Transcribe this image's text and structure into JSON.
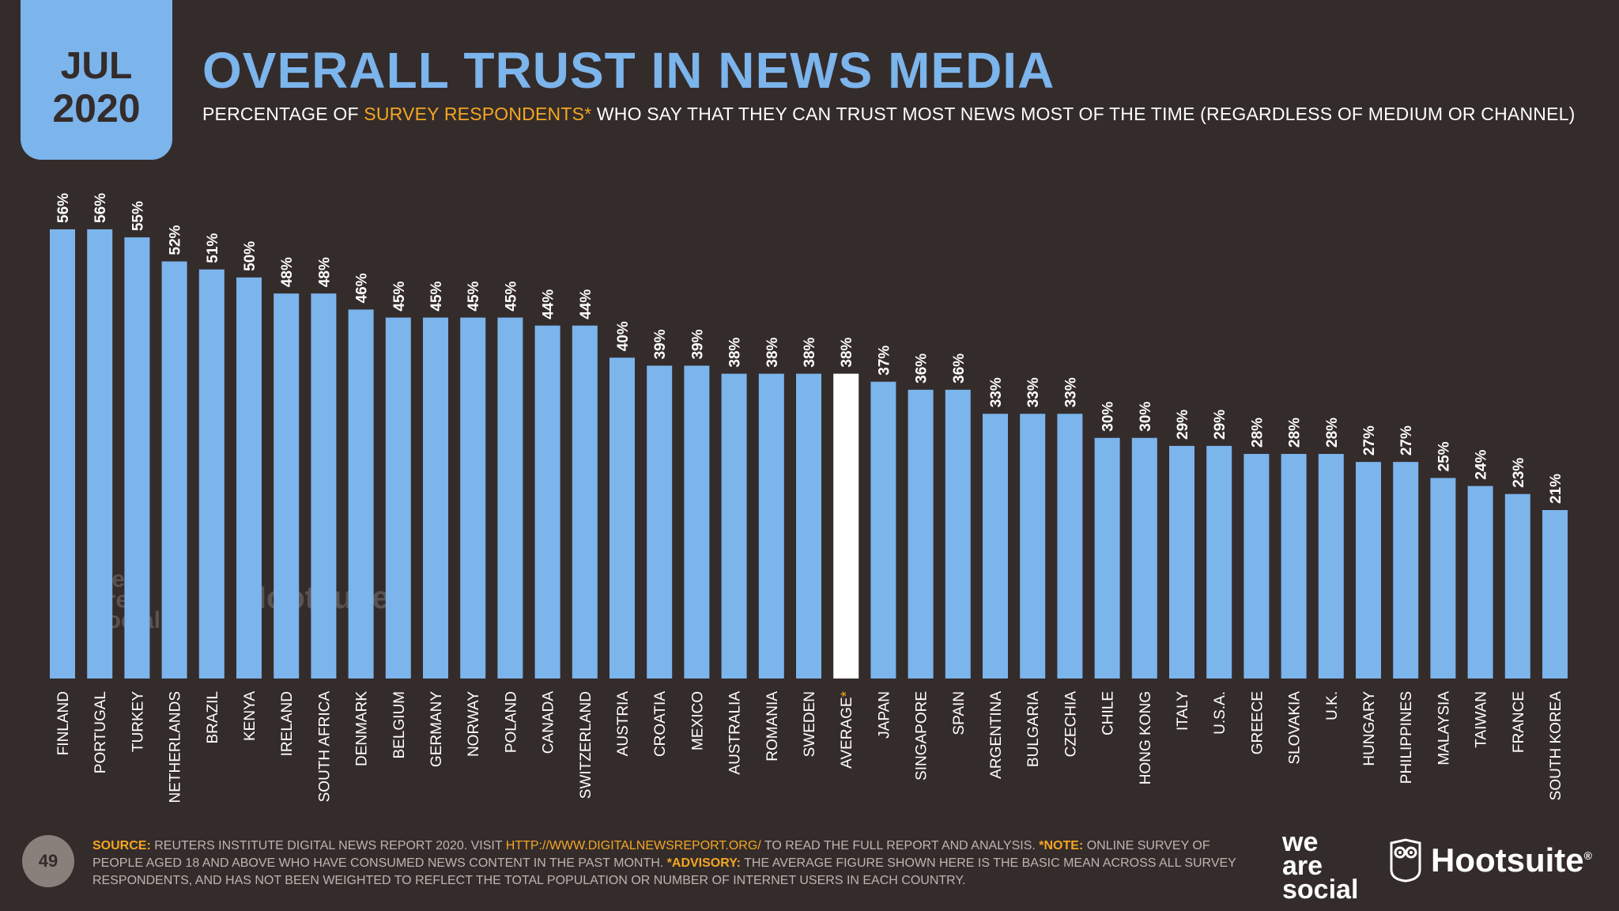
{
  "badge": {
    "month": "JUL",
    "year": "2020"
  },
  "header": {
    "title": "OVERALL TRUST IN NEWS MEDIA",
    "subtitle_pre": "PERCENTAGE OF ",
    "subtitle_accent": "SURVEY RESPONDENTS*",
    "subtitle_post": " WHO SAY THAT THEY CAN TRUST MOST NEWS MOST OF THE TIME (REGARDLESS OF MEDIUM OR CHANNEL)"
  },
  "chart_data": {
    "type": "bar",
    "categories": [
      "FINLAND",
      "PORTUGAL",
      "TURKEY",
      "NETHERLANDS",
      "BRAZIL",
      "KENYA",
      "IRELAND",
      "SOUTH AFRICA",
      "DENMARK",
      "BELGIUM",
      "GERMANY",
      "NORWAY",
      "POLAND",
      "CANADA",
      "SWITZERLAND",
      "AUSTRIA",
      "CROATIA",
      "MEXICO",
      "AUSTRALIA",
      "ROMANIA",
      "SWEDEN",
      "AVERAGE",
      "JAPAN",
      "SINGAPORE",
      "SPAIN",
      "ARGENTINA",
      "BULGARIA",
      "CZECHIA",
      "CHILE",
      "HONG KONG",
      "ITALY",
      "U.S.A.",
      "GREECE",
      "SLOVAKIA",
      "U.K.",
      "HUNGARY",
      "PHILIPPINES",
      "MALAYSIA",
      "TAIWAN",
      "FRANCE",
      "SOUTH KOREA"
    ],
    "values": [
      56,
      56,
      55,
      52,
      51,
      50,
      48,
      48,
      46,
      45,
      45,
      45,
      45,
      44,
      44,
      40,
      39,
      39,
      38,
      38,
      38,
      38,
      37,
      36,
      36,
      33,
      33,
      33,
      30,
      30,
      29,
      29,
      28,
      28,
      28,
      27,
      27,
      25,
      24,
      23,
      21
    ],
    "value_suffix": "%",
    "highlight_category": "AVERAGE",
    "highlight_marker": "*",
    "colors": {
      "bar": "#7cb4ec",
      "highlight": "#ffffff",
      "marker": "#f5a623",
      "background": "#342c2b"
    },
    "ylim": [
      0,
      56
    ]
  },
  "footer": {
    "page_number": "49",
    "source_label": "SOURCE:",
    "source_text": " REUTERS INSTITUTE DIGITAL NEWS REPORT 2020. VISIT ",
    "source_url": "HTTP://WWW.DIGITALNEWSREPORT.ORG/",
    "source_tail": " TO READ THE FULL REPORT AND ANALYSIS. ",
    "note_label": "*NOTE:",
    "note_text": " ONLINE SURVEY OF PEOPLE AGED 18 AND ABOVE WHO HAVE CONSUMED NEWS CONTENT IN THE PAST MONTH. ",
    "advisory_label": "*ADVISORY:",
    "advisory_text": " THE AVERAGE FIGURE SHOWN HERE IS THE BASIC MEAN ACROSS ALL SURVEY RESPONDENTS, AND HAS NOT BEEN WEIGHTED TO REFLECT THE TOTAL POPULATION OR NUMBER OF INTERNET USERS IN EACH COUNTRY."
  },
  "logos": {
    "we_are_social_line1": "we",
    "we_are_social_line2": "are",
    "we_are_social_line3": "social",
    "hootsuite": "Hootsuite",
    "hootsuite_mark": "®",
    "owl_icon": "owl-icon"
  }
}
